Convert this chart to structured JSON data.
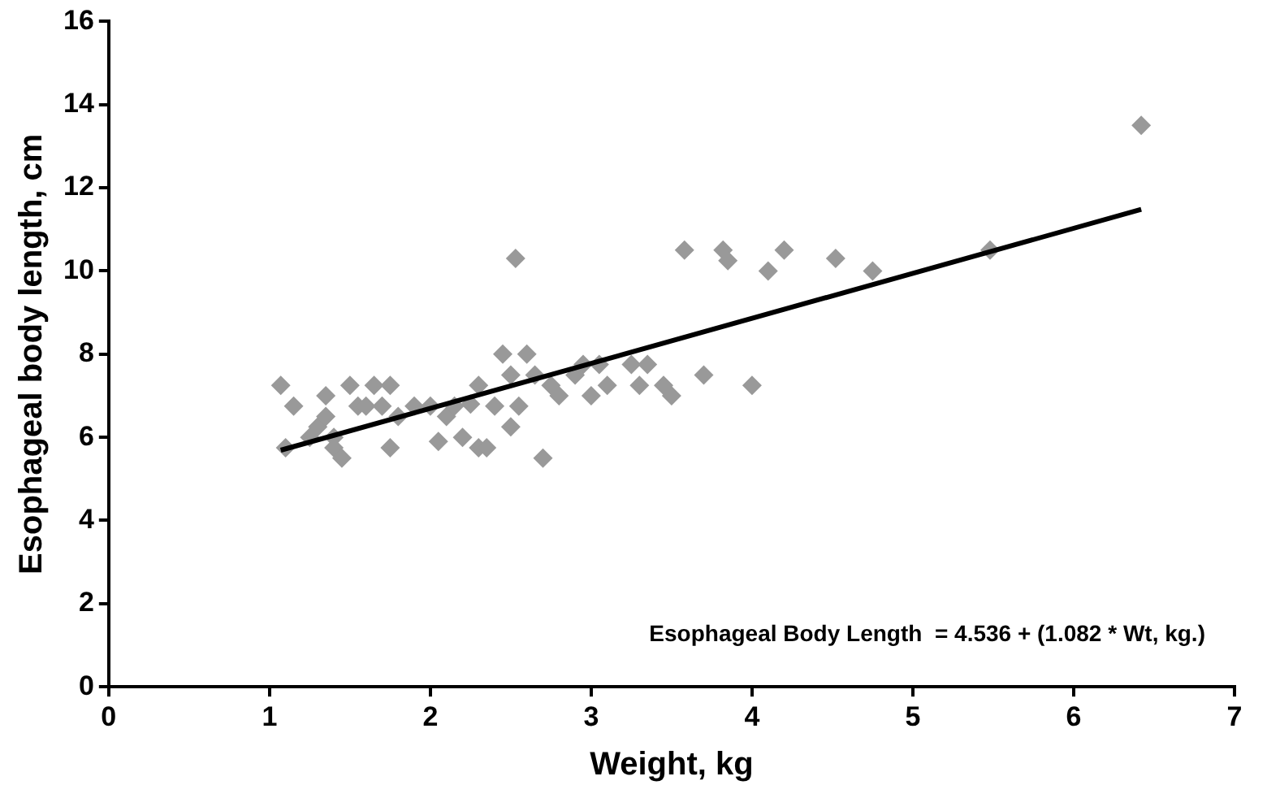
{
  "chart_data": {
    "type": "scatter",
    "xlabel": "Weight, kg",
    "ylabel": "Esophageal body length, cm",
    "xlim": [
      0,
      7
    ],
    "xticks": [
      0,
      1,
      2,
      3,
      4,
      5,
      6,
      7
    ],
    "ylim": [
      0,
      16
    ],
    "yticks": [
      0,
      2,
      4,
      6,
      8,
      10,
      12,
      14,
      16
    ],
    "grid": false,
    "legend": false,
    "marker": "diamond",
    "annotations": [
      "Esophageal Body Length  = 4.536 + (1.082 * Wt, kg.)"
    ],
    "series": [
      {
        "color": "#999999",
        "x": [
          1.07,
          1.1,
          1.15,
          1.25,
          1.3,
          1.35,
          1.35,
          1.4,
          1.4,
          1.45,
          1.5,
          1.55,
          1.6,
          1.65,
          1.7,
          1.75,
          1.75,
          1.8,
          1.9,
          2.0,
          2.05,
          2.1,
          2.15,
          2.2,
          2.25,
          2.3,
          2.3,
          2.35,
          2.4,
          2.45,
          2.5,
          2.5,
          2.53,
          2.55,
          2.6,
          2.65,
          2.7,
          2.75,
          2.8,
          2.9,
          2.95,
          3.0,
          3.05,
          3.1,
          3.25,
          3.3,
          3.35,
          3.45,
          3.5,
          3.58,
          3.7,
          3.82,
          3.85,
          4.0,
          4.1,
          4.2,
          4.52,
          4.75,
          5.48,
          6.42
        ],
        "values": [
          7.25,
          5.75,
          6.75,
          6.0,
          6.25,
          7.0,
          6.5,
          6.0,
          5.75,
          5.5,
          7.25,
          6.75,
          6.75,
          7.25,
          6.75,
          7.25,
          5.75,
          6.5,
          6.75,
          6.75,
          5.9,
          6.5,
          6.75,
          6.0,
          6.8,
          5.75,
          7.25,
          5.75,
          6.75,
          8.0,
          7.5,
          6.25,
          10.3,
          6.75,
          8.0,
          7.5,
          5.5,
          7.25,
          7.0,
          7.5,
          7.75,
          7.0,
          7.75,
          7.25,
          7.75,
          7.25,
          7.75,
          7.25,
          7.0,
          10.5,
          7.5,
          10.5,
          10.25,
          7.25,
          10.0,
          10.5,
          10.3,
          10.0,
          10.5,
          13.5
        ]
      },
      {
        "type": "line",
        "color": "#000000",
        "x": [
          1.07,
          6.42
        ],
        "values": [
          5.69,
          11.48
        ],
        "marker": "none",
        "line_style": "solid"
      }
    ]
  }
}
